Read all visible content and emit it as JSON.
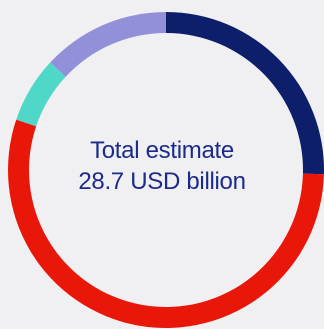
{
  "chart_data": {
    "type": "pie",
    "variant": "donut",
    "center_label": [
      "Total estimate",
      "28.7 USD billion"
    ],
    "slices": [
      {
        "value": 24.1,
        "color": "#0d1f6b"
      },
      {
        "value": 51.9,
        "color": "#e8170a"
      },
      {
        "value": 6.4,
        "color": "#4fd7c8"
      },
      {
        "value": 12.4,
        "color": "#9190d8"
      }
    ],
    "legend": "none"
  },
  "colors": {
    "background": "#f0f0f2",
    "center_text": "#1c2a8c"
  }
}
